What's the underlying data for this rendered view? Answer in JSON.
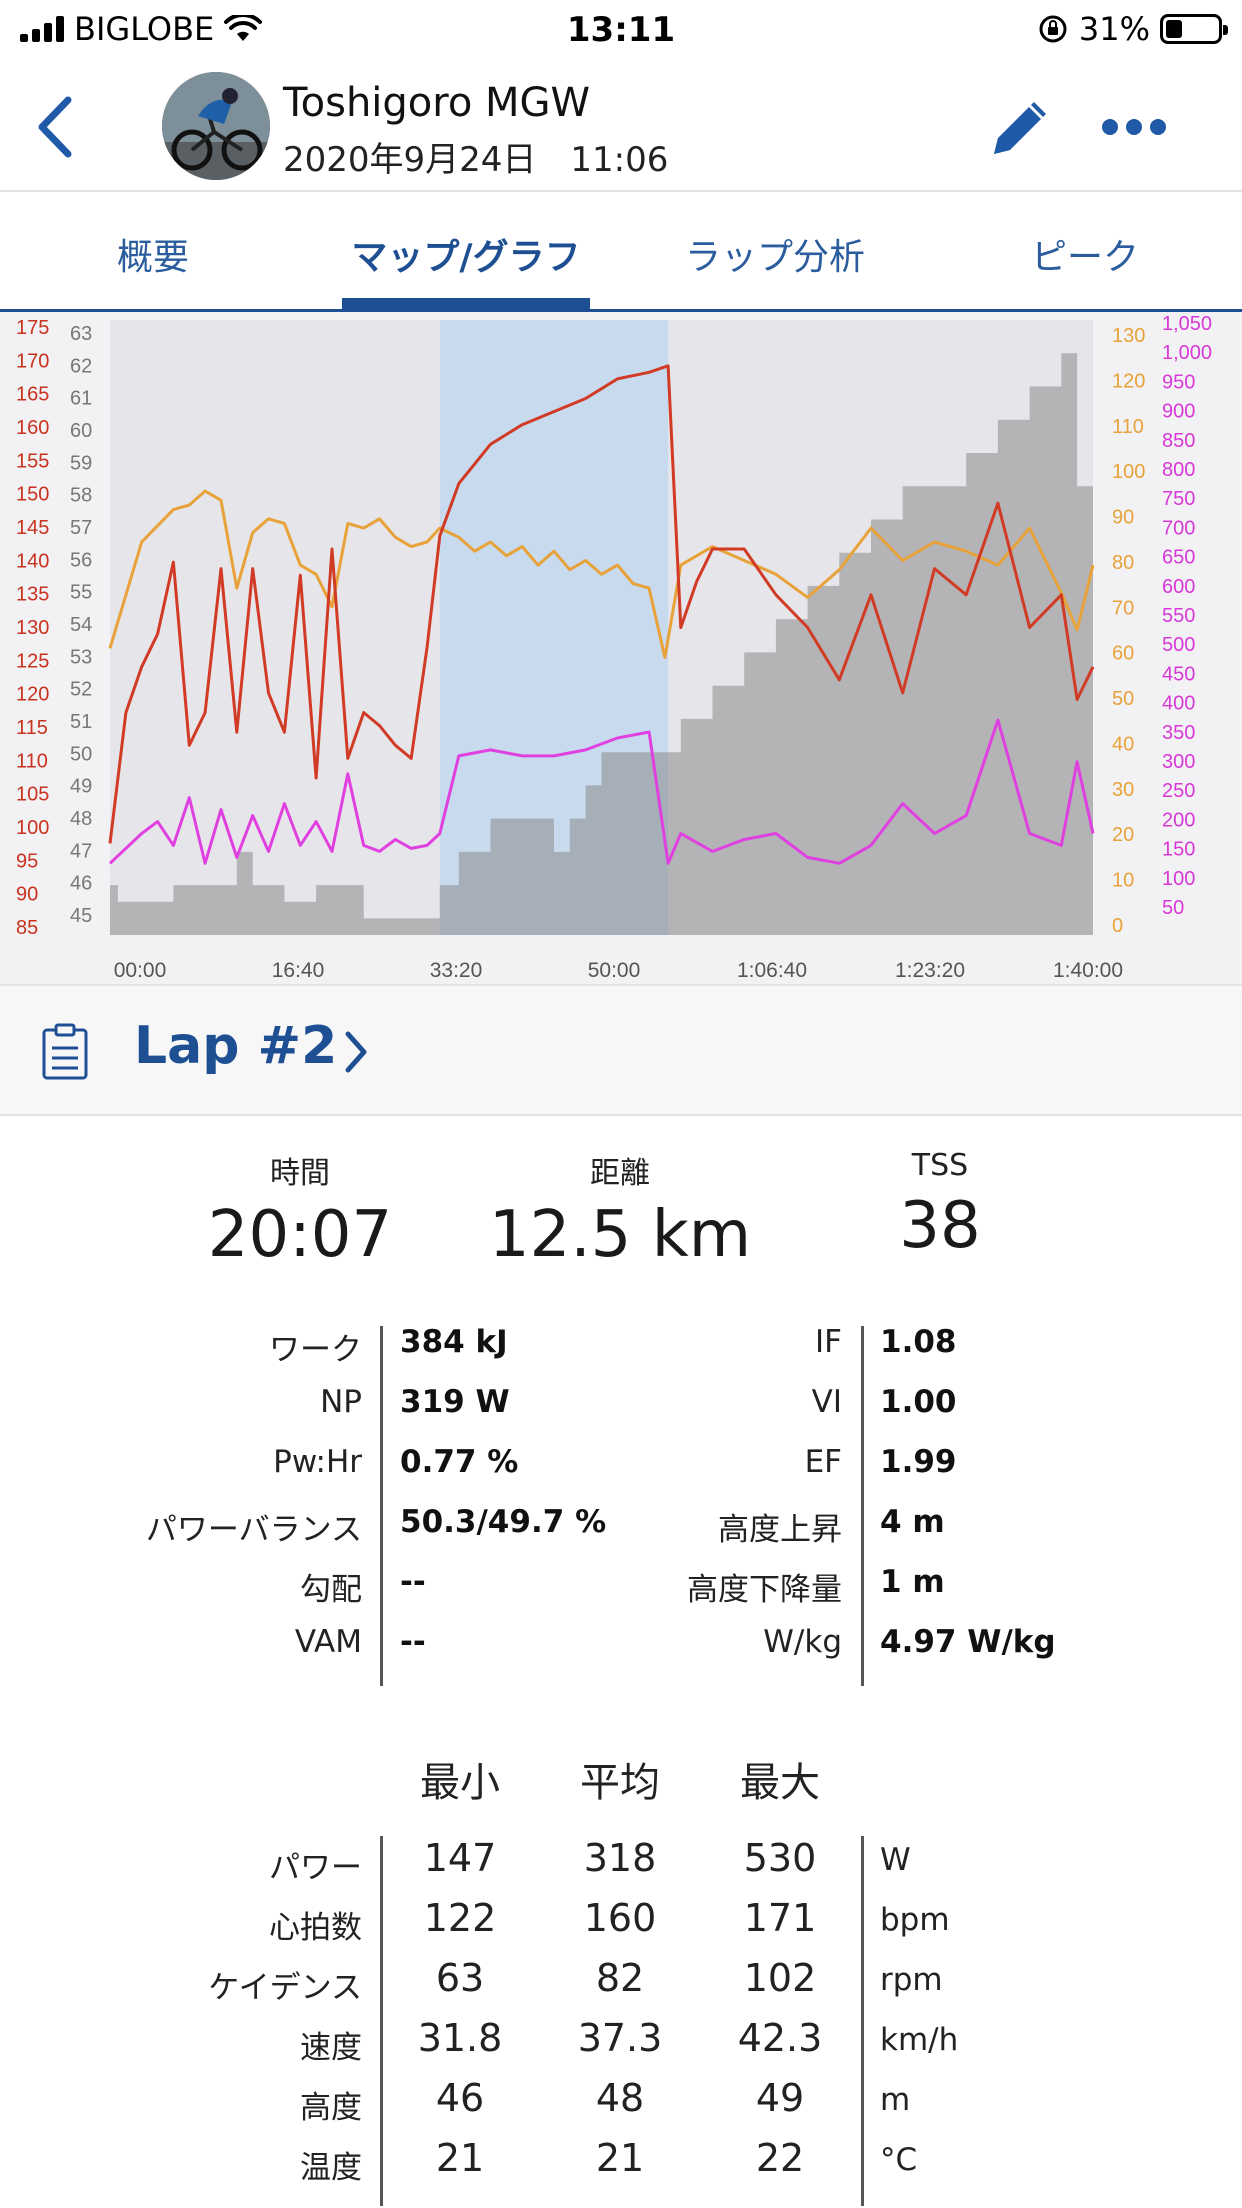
{
  "status_bar": {
    "carrier": "BIGLOBE",
    "time": "13:11",
    "battery": "31%",
    "battery_level": 0.31
  },
  "header": {
    "athlete_name": "Toshigoro MGW",
    "activity_date": "2020年9月24日　11:06"
  },
  "tabs": [
    {
      "label": "概要"
    },
    {
      "label": "マップ/グラフ",
      "active": true
    },
    {
      "label": "ラップ分析"
    },
    {
      "label": "ピーク"
    }
  ],
  "chart_data": {
    "type": "line",
    "x_ticks": [
      "00:00",
      "16:40",
      "33:20",
      "50:00",
      "1:06:40",
      "1:23:20",
      "1:40:00"
    ],
    "x_range_seconds": [
      0,
      6200
    ],
    "highlight_range_seconds": [
      2080,
      3520
    ],
    "axes": {
      "heart_rate": {
        "ticks": [
          "175",
          "170",
          "165",
          "160",
          "155",
          "150",
          "145",
          "140",
          "135",
          "130",
          "125",
          "120",
          "115",
          "110",
          "105",
          "100",
          "95",
          "90",
          "85"
        ],
        "range": [
          81,
          175
        ]
      },
      "altitude": {
        "ticks": [
          "63",
          "62",
          "61",
          "60",
          "59",
          "58",
          "57",
          "56",
          "55",
          "54",
          "53",
          "52",
          "51",
          "50",
          "49",
          "48",
          "47",
          "46",
          "45"
        ],
        "range": [
          44.5,
          63
        ]
      },
      "cadence": {
        "ticks": [
          "130",
          "120",
          "110",
          "100",
          "90",
          "80",
          "70",
          "60",
          "50",
          "40",
          "30",
          "20",
          "10",
          "0"
        ],
        "range": [
          0,
          133
        ]
      },
      "power": {
        "ticks": [
          "1,050",
          "1,000",
          "950",
          "900",
          "850",
          "800",
          "750",
          "700",
          "650",
          "600",
          "550",
          "500",
          "450",
          "400",
          "350",
          "300",
          "250",
          "200",
          "150",
          "100",
          "50"
        ],
        "range": [
          30,
          1060
        ]
      }
    },
    "series": [
      {
        "color": "#e8a23a",
        "axis": "cadence",
        "x": [
          0,
          200,
          400,
          500,
          600,
          700,
          800,
          900,
          1000,
          1100,
          1200,
          1300,
          1400,
          1500,
          1600,
          1700,
          1800,
          1900,
          2000,
          2080,
          2200,
          2300,
          2400,
          2500,
          2600,
          2700,
          2800,
          2900,
          3000,
          3100,
          3200,
          3300,
          3400,
          3500,
          3600,
          3800,
          4000,
          4200,
          4400,
          4600,
          4800,
          5000,
          5200,
          5400,
          5600,
          5800,
          6000,
          6100,
          6200
        ],
        "y": [
          62,
          85,
          92,
          93,
          96,
          94,
          75,
          87,
          90,
          89,
          80,
          78,
          71,
          89,
          88,
          90,
          86,
          84,
          85,
          88,
          86,
          83,
          85,
          82,
          84,
          80,
          83,
          79,
          81,
          78,
          80,
          76,
          75,
          60,
          80,
          84,
          81,
          78,
          73,
          79,
          88,
          81,
          85,
          83,
          80,
          88,
          74,
          66,
          80
        ]
      },
      {
        "color": "#d13b26",
        "axis": "heart_rate",
        "x": [
          0,
          100,
          200,
          300,
          400,
          500,
          600,
          700,
          800,
          900,
          1000,
          1100,
          1200,
          1300,
          1400,
          1500,
          1600,
          1700,
          1800,
          1900,
          2000,
          2080,
          2200,
          2300,
          2400,
          2600,
          2800,
          3000,
          3200,
          3400,
          3520,
          3600,
          3700,
          3800,
          4000,
          4200,
          4400,
          4600,
          4800,
          5000,
          5200,
          5400,
          5600,
          5800,
          6000,
          6100,
          6200
        ],
        "y": [
          95,
          115,
          122,
          127,
          138,
          110,
          115,
          137,
          112,
          137,
          118,
          112,
          136,
          105,
          140,
          108,
          115,
          113,
          110,
          108,
          125,
          142,
          150,
          153,
          156,
          159,
          161,
          163,
          166,
          167,
          168,
          128,
          135,
          140,
          140,
          133,
          128,
          120,
          133,
          118,
          137,
          133,
          147,
          128,
          133,
          117,
          122
        ]
      },
      {
        "color": "#e040e0",
        "axis": "power",
        "x": [
          0,
          200,
          300,
          400,
          500,
          600,
          700,
          800,
          900,
          1000,
          1100,
          1200,
          1300,
          1400,
          1500,
          1600,
          1700,
          1800,
          1900,
          2000,
          2080,
          2200,
          2400,
          2600,
          2800,
          3000,
          3200,
          3400,
          3520,
          3600,
          3800,
          4000,
          4200,
          4400,
          4600,
          4800,
          5000,
          5200,
          5400,
          5600,
          5800,
          6000,
          6100,
          6200
        ],
        "y": [
          150,
          200,
          220,
          180,
          260,
          150,
          240,
          160,
          230,
          170,
          250,
          180,
          220,
          170,
          300,
          180,
          170,
          190,
          175,
          180,
          200,
          330,
          340,
          330,
          330,
          340,
          360,
          370,
          150,
          200,
          170,
          190,
          200,
          160,
          150,
          180,
          250,
          200,
          230,
          390,
          200,
          180,
          320,
          200
        ]
      },
      {
        "color": "#8a8a8a",
        "axis": "altitude",
        "fill": true,
        "x": [
          0,
          50,
          50,
          400,
          400,
          800,
          800,
          900,
          900,
          1100,
          1100,
          1300,
          1300,
          1600,
          1600,
          2080,
          2080,
          2200,
          2200,
          2400,
          2400,
          2600,
          2600,
          2800,
          2800,
          2900,
          2900,
          3000,
          3000,
          3100,
          3100,
          3520,
          3520,
          3600,
          3600,
          3800,
          3800,
          4000,
          4000,
          4200,
          4200,
          4400,
          4400,
          4600,
          4600,
          4800,
          4800,
          5000,
          5000,
          5200,
          5200,
          5400,
          5400,
          5600,
          5600,
          5800,
          5800,
          6000,
          6000,
          6100,
          6100,
          6200
        ],
        "y": [
          46,
          46,
          45.5,
          45.5,
          46,
          46,
          47,
          47,
          46,
          46,
          45.5,
          45.5,
          46,
          46,
          45,
          45,
          46,
          46,
          47,
          47,
          48,
          48,
          48,
          48,
          47,
          47,
          48,
          48,
          49,
          49,
          50,
          50,
          50,
          50,
          51,
          51,
          52,
          52,
          53,
          53,
          54,
          54,
          55,
          55,
          56,
          56,
          57,
          57,
          58,
          58,
          58,
          58,
          59,
          59,
          60,
          60,
          61,
          61,
          62,
          62,
          58,
          58
        ]
      }
    ]
  },
  "lap": {
    "title": "Lap #2"
  },
  "summary": [
    {
      "label": "時間",
      "value": "20:07"
    },
    {
      "label": "距離",
      "value": "12.5 km"
    },
    {
      "label": "TSS",
      "value": "38"
    }
  ],
  "metrics_left": [
    {
      "label": "ワーク",
      "value": "384 kJ"
    },
    {
      "label": "NP",
      "value": "319 W"
    },
    {
      "label": "Pw:Hr",
      "value": "0.77 %"
    },
    {
      "label": "パワーバランス",
      "value": "50.3/49.7 %"
    },
    {
      "label": "勾配",
      "value": "--"
    },
    {
      "label": "VAM",
      "value": "--"
    }
  ],
  "metrics_right": [
    {
      "label": "IF",
      "value": "1.08"
    },
    {
      "label": "VI",
      "value": "1.00"
    },
    {
      "label": "EF",
      "value": "1.99"
    },
    {
      "label": "高度上昇",
      "value": "4 m"
    },
    {
      "label": "高度下降量",
      "value": "1 m"
    },
    {
      "label": "W/kg",
      "value": "4.97 W/kg"
    }
  ],
  "stats": {
    "headers": [
      "最小",
      "平均",
      "最大"
    ],
    "rows": [
      {
        "label": "パワー",
        "min": "147",
        "avg": "318",
        "max": "530",
        "unit": "W"
      },
      {
        "label": "心拍数",
        "min": "122",
        "avg": "160",
        "max": "171",
        "unit": "bpm"
      },
      {
        "label": "ケイデンス",
        "min": "63",
        "avg": "82",
        "max": "102",
        "unit": "rpm"
      },
      {
        "label": "速度",
        "min": "31.8",
        "avg": "37.3",
        "max": "42.3",
        "unit": "km/h"
      },
      {
        "label": "高度",
        "min": "46",
        "avg": "48",
        "max": "49",
        "unit": "m"
      },
      {
        "label": "温度",
        "min": "21",
        "avg": "21",
        "max": "22",
        "unit": "°C"
      }
    ]
  }
}
